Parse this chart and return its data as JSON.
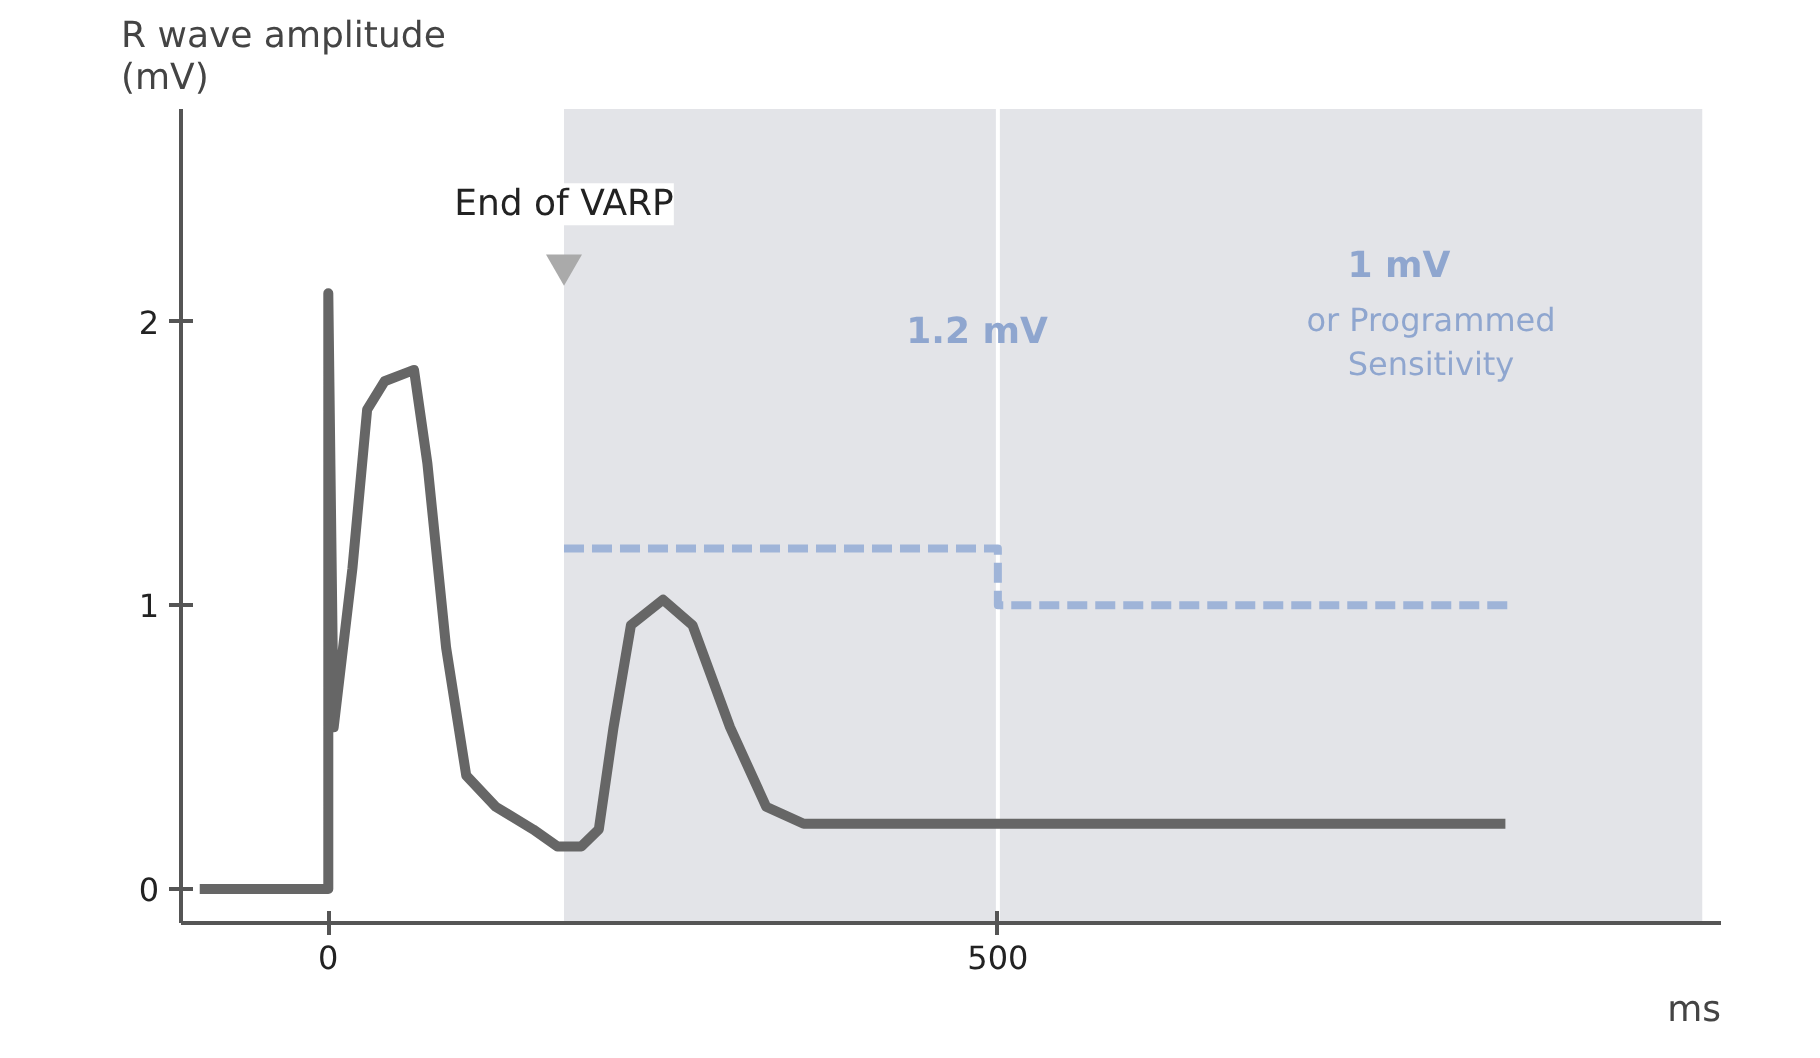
{
  "chart_data": {
    "type": "line",
    "xlabel": "ms",
    "ylabel": "R wave amplitude\n(mV)",
    "xlim": [
      -110,
      1040
    ],
    "ylim": [
      -0.12,
      2.75
    ],
    "xticks": [
      0,
      500
    ],
    "yticks": [
      0,
      1,
      2
    ],
    "grid": false,
    "series": [
      {
        "color": "#666666",
        "x": [
          -96,
          -7,
          0,
          0,
          4,
          18,
          29,
          42,
          64,
          74,
          88,
          103,
          125,
          153,
          171,
          189,
          202,
          213,
          226,
          250,
          272,
          300,
          327,
          355,
          879
        ],
        "values": [
          0,
          0,
          0,
          2.1,
          0.57,
          1.13,
          1.69,
          1.79,
          1.83,
          1.5,
          0.85,
          0.4,
          0.29,
          0.21,
          0.15,
          0.15,
          0.21,
          0.57,
          0.93,
          1.02,
          0.93,
          0.57,
          0.29,
          0.23,
          0.23
        ]
      },
      {
        "type": "scatter",
        "marker": "triangle",
        "color": "#aaaaaa",
        "x": [
          176
        ],
        "values": [
          2.2
        ]
      },
      {
        "type": "step",
        "line_style": "dashed",
        "color": "#9fb4d8",
        "x": [
          176,
          500,
          882
        ],
        "values": [
          1.2,
          1.0,
          1.0
        ]
      }
    ],
    "bands": [
      {
        "axis": "x",
        "from": 176,
        "to": 500,
        "color": "#e3e4e8"
      },
      {
        "axis": "x",
        "from": 500,
        "to": 1026,
        "color": "#e3e4e8"
      }
    ],
    "ref_lines": [
      {
        "axis": "x",
        "value": 500,
        "color": "#ffffff"
      }
    ],
    "annotations": [
      {
        "text": "End of VARP",
        "x": 176,
        "y": 2.2
      },
      "1.2 mV",
      "1 mV",
      "or Programmed",
      "Sensitivity"
    ]
  }
}
